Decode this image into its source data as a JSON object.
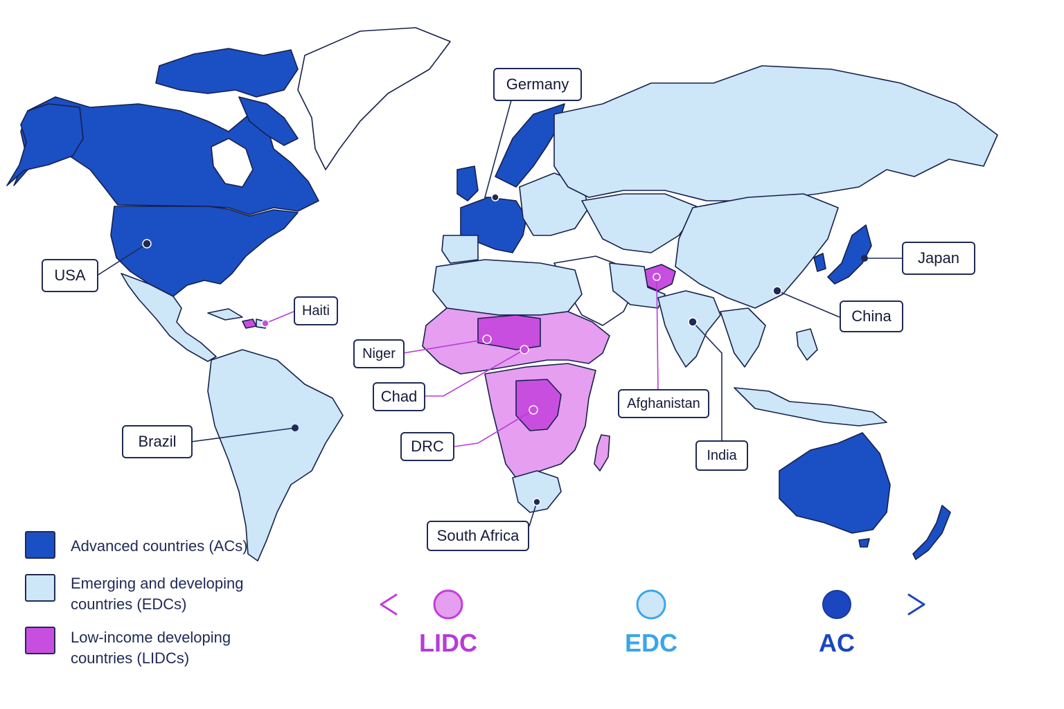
{
  "colors": {
    "advanced": "#1b4fc4",
    "emerging": "#cde6f8",
    "lowincome": "#c84ee0",
    "lowincome_light": "#e59ef0",
    "unclassified": "#ffffff",
    "outline": "#16204a",
    "lidc_text": "#b83ad8",
    "edc_text": "#3aa6ea",
    "ac_text": "#1b46c0"
  },
  "callouts": {
    "germany": "Germany",
    "usa": "USA",
    "japan": "Japan",
    "china": "China",
    "haiti": "Haiti",
    "niger": "Niger",
    "chad": "Chad",
    "drc": "DRC",
    "brazil": "Brazil",
    "afghanistan": "Afghanistan",
    "india": "India",
    "south_africa": "South Africa"
  },
  "legend": {
    "ac": {
      "line1": "Advanced countries (ACs)",
      "line2": ""
    },
    "edc": {
      "line1": "Emerging and developing",
      "line2": "countries (EDCs)"
    },
    "lidc": {
      "line1": "Low-income developing",
      "line2": "countries (LIDCs)"
    }
  },
  "scale": {
    "lidc": "LIDC",
    "edc": "EDC",
    "ac": "AC"
  }
}
